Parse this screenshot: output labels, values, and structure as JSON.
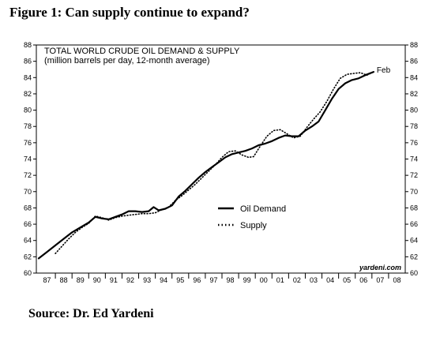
{
  "figure_title": "Figure 1:  Can supply continue to expand?",
  "source_note": "Source: Dr. Ed Yardeni",
  "chart_data": {
    "type": "line",
    "title": "TOTAL WORLD CRUDE OIL DEMAND & SUPPLY",
    "subtitle": "(million barrels per day, 12-month average)",
    "ylim": [
      60,
      88
    ],
    "y_ticks": [
      60,
      62,
      64,
      66,
      68,
      70,
      72,
      74,
      76,
      78,
      80,
      82,
      84,
      86,
      88
    ],
    "x_tick_labels": [
      "87",
      "88",
      "89",
      "90",
      "91",
      "92",
      "93",
      "94",
      "95",
      "96",
      "97",
      "98",
      "99",
      "00",
      "01",
      "02",
      "03",
      "04",
      "05",
      "06",
      "07",
      "08"
    ],
    "xlim": [
      1987,
      2009
    ],
    "grid": false,
    "legend_position": "center-right",
    "end_label": "Feb",
    "watermark": "yardeni.com",
    "series": [
      {
        "name": "Oil Demand",
        "style": "solid",
        "color": "#000000",
        "points": [
          [
            1987.0,
            61.8
          ],
          [
            1987.5,
            62.6
          ],
          [
            1988.0,
            63.4
          ],
          [
            1988.5,
            64.2
          ],
          [
            1989.0,
            65.0
          ],
          [
            1989.5,
            65.6
          ],
          [
            1990.0,
            66.2
          ],
          [
            1990.4,
            66.9
          ],
          [
            1990.8,
            66.7
          ],
          [
            1991.2,
            66.6
          ],
          [
            1991.6,
            66.9
          ],
          [
            1992.0,
            67.2
          ],
          [
            1992.4,
            67.6
          ],
          [
            1992.8,
            67.6
          ],
          [
            1993.2,
            67.5
          ],
          [
            1993.6,
            67.6
          ],
          [
            1993.9,
            68.1
          ],
          [
            1994.2,
            67.7
          ],
          [
            1994.6,
            67.9
          ],
          [
            1995.0,
            68.3
          ],
          [
            1995.4,
            69.4
          ],
          [
            1995.8,
            70.1
          ],
          [
            1996.2,
            70.9
          ],
          [
            1996.6,
            71.7
          ],
          [
            1997.0,
            72.4
          ],
          [
            1997.4,
            73.0
          ],
          [
            1997.8,
            73.6
          ],
          [
            1998.2,
            74.2
          ],
          [
            1998.6,
            74.6
          ],
          [
            1999.0,
            74.8
          ],
          [
            1999.4,
            75.0
          ],
          [
            1999.8,
            75.3
          ],
          [
            2000.2,
            75.7
          ],
          [
            2000.6,
            75.9
          ],
          [
            2001.0,
            76.2
          ],
          [
            2001.4,
            76.6
          ],
          [
            2001.8,
            76.9
          ],
          [
            2002.2,
            76.8
          ],
          [
            2002.6,
            76.8
          ],
          [
            2003.0,
            77.5
          ],
          [
            2003.4,
            78.0
          ],
          [
            2003.8,
            78.6
          ],
          [
            2004.2,
            80.0
          ],
          [
            2004.6,
            81.4
          ],
          [
            2005.0,
            82.6
          ],
          [
            2005.4,
            83.3
          ],
          [
            2005.8,
            83.7
          ],
          [
            2006.2,
            83.9
          ],
          [
            2006.6,
            84.3
          ],
          [
            2007.1,
            84.7
          ]
        ]
      },
      {
        "name": "Supply",
        "style": "dotted",
        "color": "#000000",
        "points": [
          [
            1988.0,
            62.4
          ],
          [
            1988.4,
            63.3
          ],
          [
            1988.8,
            64.2
          ],
          [
            1989.2,
            65.0
          ],
          [
            1989.6,
            65.6
          ],
          [
            1990.0,
            66.1
          ],
          [
            1990.4,
            67.0
          ],
          [
            1990.8,
            66.8
          ],
          [
            1991.2,
            66.5
          ],
          [
            1991.6,
            66.8
          ],
          [
            1992.0,
            67.0
          ],
          [
            1992.4,
            67.1
          ],
          [
            1992.8,
            67.2
          ],
          [
            1993.2,
            67.3
          ],
          [
            1993.6,
            67.3
          ],
          [
            1994.0,
            67.4
          ],
          [
            1994.4,
            67.8
          ],
          [
            1994.8,
            68.1
          ],
          [
            1995.2,
            68.9
          ],
          [
            1995.6,
            69.5
          ],
          [
            1996.0,
            70.2
          ],
          [
            1996.4,
            70.9
          ],
          [
            1996.8,
            71.7
          ],
          [
            1997.2,
            72.5
          ],
          [
            1997.6,
            73.3
          ],
          [
            1998.0,
            74.2
          ],
          [
            1998.4,
            74.9
          ],
          [
            1998.8,
            75.0
          ],
          [
            1999.2,
            74.5
          ],
          [
            1999.6,
            74.2
          ],
          [
            1999.9,
            74.3
          ],
          [
            2000.3,
            75.6
          ],
          [
            2000.7,
            76.8
          ],
          [
            2001.1,
            77.5
          ],
          [
            2001.5,
            77.6
          ],
          [
            2001.9,
            77.1
          ],
          [
            2002.3,
            76.6
          ],
          [
            2002.7,
            76.8
          ],
          [
            2003.1,
            77.9
          ],
          [
            2003.5,
            78.9
          ],
          [
            2003.9,
            79.8
          ],
          [
            2004.3,
            81.1
          ],
          [
            2004.7,
            82.6
          ],
          [
            2005.1,
            83.9
          ],
          [
            2005.5,
            84.4
          ],
          [
            2005.9,
            84.5
          ],
          [
            2006.3,
            84.6
          ],
          [
            2006.7,
            84.3
          ],
          [
            2007.1,
            84.7
          ]
        ]
      }
    ]
  }
}
